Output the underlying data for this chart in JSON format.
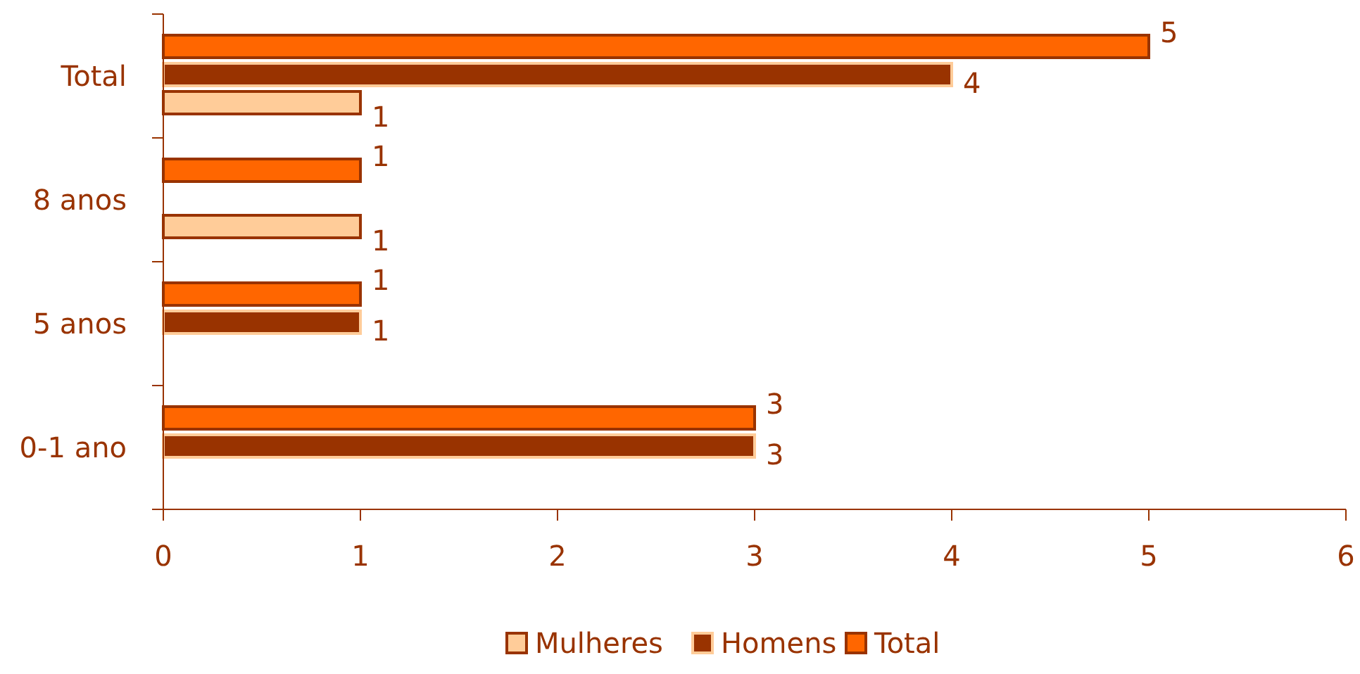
{
  "chart_data": {
    "type": "bar",
    "orientation": "horizontal",
    "categories": [
      "Total",
      "8 anos",
      "5 anos",
      "0-1 ano"
    ],
    "series": [
      {
        "name": "Total",
        "color": "#ff6600",
        "values": [
          5,
          1,
          1,
          3
        ]
      },
      {
        "name": "Homens",
        "color": "#993300",
        "values": [
          4,
          null,
          1,
          3
        ]
      },
      {
        "name": "Mulheres",
        "color": "#ffcc99",
        "values": [
          1,
          1,
          null,
          null
        ]
      }
    ],
    "xlim": [
      0,
      6
    ],
    "xticks": [
      0,
      1,
      2,
      3,
      4,
      5,
      6
    ],
    "data_labels": true,
    "legend": "bottom",
    "grid": false
  }
}
